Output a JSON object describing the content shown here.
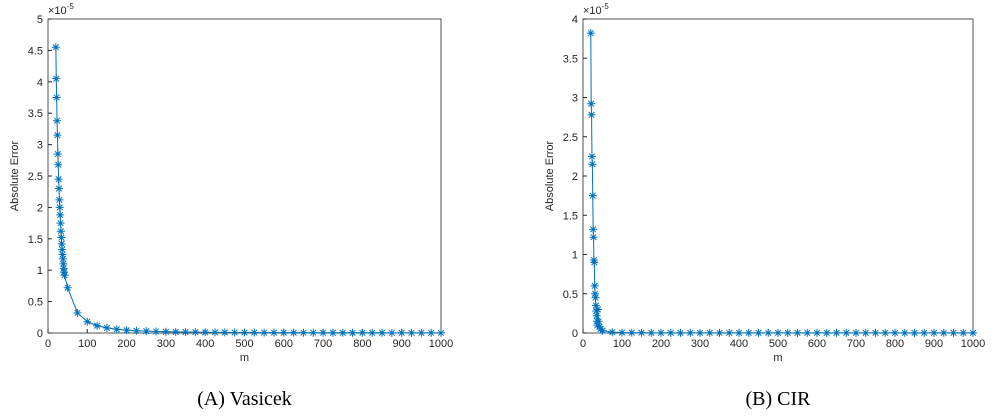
{
  "chart_data": [
    {
      "type": "line",
      "caption": "(A) Vasicek",
      "xlabel": "m",
      "ylabel": "Absolute Error",
      "y_multiplier": {
        "base": "×10",
        "exponent": "-5"
      },
      "color": "#0072bd",
      "x": [
        20,
        21,
        22,
        23,
        24,
        25,
        26,
        27,
        28,
        29,
        30,
        31,
        32,
        33,
        34,
        35,
        36,
        37,
        38,
        39,
        40,
        41,
        42,
        50,
        75,
        100,
        125,
        150,
        175,
        200,
        225,
        250,
        275,
        300,
        325,
        350,
        375,
        400,
        425,
        450,
        475,
        500,
        525,
        550,
        575,
        600,
        625,
        650,
        675,
        700,
        725,
        750,
        775,
        800,
        825,
        850,
        875,
        900,
        925,
        950,
        975,
        1000
      ],
      "values": [
        4.55,
        4.05,
        3.75,
        3.38,
        3.15,
        2.85,
        2.68,
        2.45,
        2.3,
        2.12,
        2.0,
        1.88,
        1.75,
        1.62,
        1.52,
        1.42,
        1.33,
        1.25,
        1.18,
        1.1,
        1.03,
        0.97,
        0.92,
        0.72,
        0.32,
        0.18,
        0.116,
        0.081,
        0.059,
        0.045,
        0.036,
        0.029,
        0.024,
        0.02,
        0.017,
        0.015,
        0.013,
        0.011,
        0.01,
        0.009,
        0.008,
        0.007,
        0.007,
        0.006,
        0.006,
        0.005,
        0.005,
        0.004,
        0.004,
        0.004,
        0.003,
        0.003,
        0.003,
        0.003,
        0.003,
        0.003,
        0.002,
        0.002,
        0.002,
        0.002,
        0.002,
        0.002
      ],
      "xlim": [
        0,
        1000
      ],
      "xticks": [
        0,
        100,
        200,
        300,
        400,
        500,
        600,
        700,
        800,
        900,
        1000
      ],
      "ylim": [
        0,
        5
      ],
      "yticks": [
        0,
        0.5,
        1,
        1.5,
        2,
        2.5,
        3,
        3.5,
        4,
        4.5,
        5
      ]
    },
    {
      "type": "line",
      "caption": "(B) CIR",
      "xlabel": "m",
      "ylabel": "Absolute Error",
      "y_multiplier": {
        "base": "×10",
        "exponent": "-5"
      },
      "color": "#0072bd",
      "x": [
        20,
        21,
        22,
        23,
        24,
        25,
        26,
        27,
        28,
        29,
        30,
        31,
        32,
        33,
        34,
        35,
        36,
        37,
        38,
        40,
        42,
        45,
        50,
        75,
        100,
        125,
        150,
        175,
        200,
        225,
        250,
        275,
        300,
        325,
        350,
        375,
        400,
        425,
        450,
        475,
        500,
        525,
        550,
        575,
        600,
        625,
        650,
        675,
        700,
        725,
        750,
        775,
        800,
        825,
        850,
        875,
        900,
        925,
        950,
        975,
        1000
      ],
      "values": [
        3.82,
        2.92,
        2.78,
        2.25,
        2.15,
        1.75,
        1.32,
        1.22,
        0.93,
        0.9,
        0.6,
        0.5,
        0.45,
        0.35,
        0.28,
        0.22,
        0.15,
        0.1,
        0.3,
        0.15,
        0.08,
        0.05,
        0.03,
        0.01,
        0.005,
        0.003,
        0.003,
        0.002,
        0.002,
        0.002,
        0.002,
        0.002,
        0.002,
        0.002,
        0.002,
        0.002,
        0.002,
        0.002,
        0.002,
        0.002,
        0.002,
        0.002,
        0.002,
        0.002,
        0.002,
        0.002,
        0.002,
        0.002,
        0.002,
        0.002,
        0.002,
        0.002,
        0.002,
        0.002,
        0.002,
        0.002,
        0.002,
        0.002,
        0.002,
        0.002,
        0.002
      ],
      "xlim": [
        0,
        1000
      ],
      "xticks": [
        0,
        100,
        200,
        300,
        400,
        500,
        600,
        700,
        800,
        900,
        1000
      ],
      "ylim": [
        0,
        4
      ],
      "yticks": [
        0,
        0.5,
        1,
        1.5,
        2,
        2.5,
        3,
        3.5,
        4
      ]
    }
  ]
}
